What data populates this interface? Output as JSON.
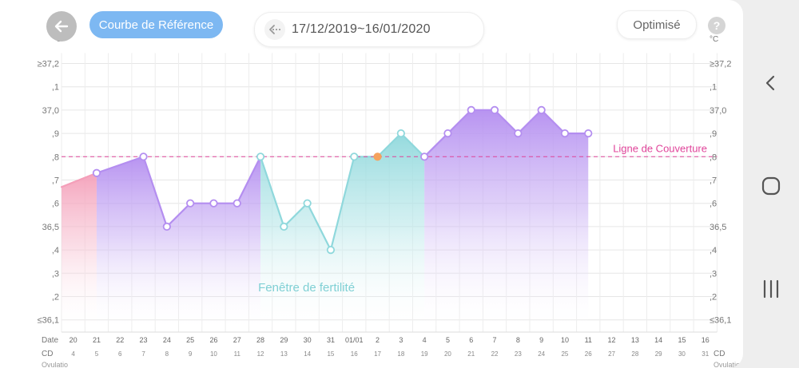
{
  "header": {
    "back_icon": "arrow-left-icon",
    "reference_button": "Courbe de Référence",
    "date_range": "17/12/2019~16/01/2020",
    "optimize_button": "Optimisé",
    "help_label": "?"
  },
  "chart_data": {
    "type": "line",
    "y_unit": "°C",
    "y_ticks": [
      "≥37,2",
      ",1",
      "37,0",
      ",9",
      ",8",
      ",7",
      ",6",
      "36,5",
      ",4",
      ",3",
      ",2",
      "≤36,1"
    ],
    "ylim": [
      36.1,
      37.2
    ],
    "coverline_value": 36.8,
    "coverline_label": "Ligne de Couverture",
    "fertile_label": "Fenêtre de fertilité",
    "x_row_label": "Date",
    "cd_row_label": "CD",
    "extra_row_label": "Ovulatio",
    "ovulation_right_label": "Ovulatio",
    "dates": [
      "20",
      "21",
      "22",
      "23",
      "24",
      "25",
      "26",
      "27",
      "28",
      "29",
      "30",
      "31",
      "01/01",
      "2",
      "3",
      "4",
      "5",
      "6",
      "7",
      "8",
      "9",
      "10",
      "11",
      "12",
      "13",
      "14",
      "15",
      "16"
    ],
    "cycle_days": [
      "4",
      "5",
      "6",
      "7",
      "8",
      "9",
      "10",
      "11",
      "12",
      "13",
      "14",
      "15",
      "16",
      "17",
      "18",
      "19",
      "20",
      "21",
      "22",
      "23",
      "24",
      "25",
      "26",
      "27",
      "28",
      "29",
      "30",
      "31"
    ],
    "series": [
      {
        "values": [
          36.69,
          36.73,
          null,
          36.8,
          36.5,
          36.6,
          36.6,
          36.6,
          36.8,
          36.5,
          36.6,
          36.4,
          36.8,
          36.8,
          36.9,
          36.8,
          36.9,
          37.0,
          37.0,
          36.9,
          37.0,
          36.9,
          36.9,
          null,
          null,
          null,
          null,
          null
        ]
      }
    ],
    "marked_points": [
      1,
      3,
      4,
      5,
      6,
      7,
      8,
      9,
      10,
      11,
      12,
      13,
      14,
      15,
      16,
      17,
      18,
      19,
      20,
      21,
      22
    ],
    "highlight_point": 13,
    "fertile_window": [
      8,
      15
    ],
    "menstrual_period": [
      0,
      1
    ],
    "colors": {
      "primary": "#b48ef0",
      "fertile": "#8fd8dc",
      "menstrual": "#f49fb9",
      "coverline": "#e0449a",
      "highlight": "#f5a25d",
      "accent": "#7db8f2"
    }
  },
  "navbar": {
    "back_icon": "chevron-left-icon",
    "home_icon": "rounded-square-icon",
    "recents_icon": "recent-apps-icon"
  }
}
